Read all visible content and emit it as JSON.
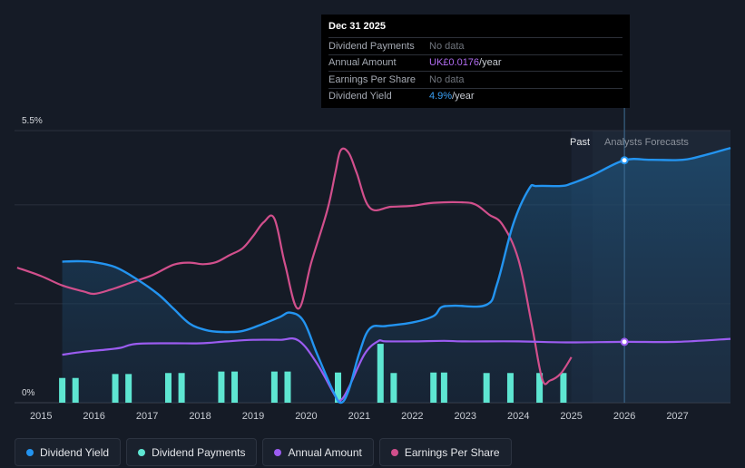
{
  "tooltip": {
    "date": "Dec 31 2025",
    "rows": [
      {
        "label": "Dividend Payments",
        "value": "No data",
        "suffix": ""
      },
      {
        "label": "Annual Amount",
        "value": "UK£0.0176",
        "suffix": "/year"
      },
      {
        "label": "Earnings Per Share",
        "value": "No data",
        "suffix": ""
      },
      {
        "label": "Dividend Yield",
        "value": "4.9%",
        "suffix": "/year"
      }
    ]
  },
  "labels": {
    "past": "Past",
    "forecast": "Analysts Forecasts"
  },
  "legend": [
    {
      "label": "Dividend Yield",
      "color": "#2394f0"
    },
    {
      "label": "Dividend Payments",
      "color": "#5ee6d2"
    },
    {
      "label": "Annual Amount",
      "color": "#9b5cf0"
    },
    {
      "label": "Earnings Per Share",
      "color": "#d14f8c"
    }
  ],
  "colors": {
    "yield": "#2394f0",
    "payments": "#5ee6d2",
    "annual": "#9b5cf0",
    "eps": "#d14f8c",
    "grid": "#2a313d",
    "forecast_bg": "#1b2433"
  },
  "chart_data": {
    "type": "line",
    "title": "",
    "xlabel": "",
    "ylabel": "",
    "ylim": [
      0,
      5.5
    ],
    "xlim": [
      2014.5,
      2028.0
    ],
    "y_tick_labels": [
      "0%",
      "5.5%"
    ],
    "x_ticks": [
      2015,
      2016,
      2017,
      2018,
      2019,
      2020,
      2021,
      2022,
      2023,
      2024,
      2025,
      2026,
      2027
    ],
    "past_end": 2025.0,
    "forecast_start": 2025.4,
    "tooltip_x": 2026.0,
    "series": [
      {
        "name": "Dividend Yield",
        "unit": "%",
        "x": [
          2015.4,
          2015.7,
          2016.0,
          2016.4,
          2016.8,
          2017.2,
          2017.5,
          2017.8,
          2018.1,
          2018.4,
          2018.8,
          2019.2,
          2019.5,
          2019.7,
          2019.95,
          2020.2,
          2020.5,
          2020.65,
          2020.8,
          2021.0,
          2021.2,
          2021.5,
          2022.0,
          2022.4,
          2022.55,
          2022.8,
          2023.4,
          2023.6,
          2023.9,
          2024.2,
          2024.35,
          2024.8,
          2025.0,
          2025.4,
          2026.0,
          2026.5,
          2027.1,
          2027.5,
          2028.0
        ],
        "values": [
          2.85,
          2.86,
          2.84,
          2.74,
          2.5,
          2.2,
          1.9,
          1.6,
          1.47,
          1.43,
          1.45,
          1.6,
          1.73,
          1.82,
          1.65,
          1.0,
          0.25,
          0.0,
          0.25,
          1.0,
          1.5,
          1.55,
          1.62,
          1.75,
          1.93,
          1.96,
          1.98,
          2.4,
          3.6,
          4.32,
          4.38,
          4.38,
          4.43,
          4.6,
          4.9,
          4.91,
          4.91,
          5.0,
          5.15
        ]
      },
      {
        "name": "Annual Amount",
        "unit": "index",
        "x": [
          2015.4,
          2015.8,
          2016.2,
          2016.5,
          2016.8,
          2017.5,
          2018.0,
          2018.5,
          2019.0,
          2019.5,
          2019.85,
          2020.2,
          2020.55,
          2020.65,
          2020.8,
          2021.1,
          2021.35,
          2021.5,
          2022.0,
          2022.6,
          2023.0,
          2024.0,
          2024.9,
          2026.0,
          2027.0,
          2028.0
        ],
        "values": [
          0.97,
          1.03,
          1.07,
          1.11,
          1.19,
          1.2,
          1.2,
          1.24,
          1.27,
          1.27,
          1.26,
          0.8,
          0.13,
          0.05,
          0.3,
          0.98,
          1.24,
          1.24,
          1.24,
          1.25,
          1.24,
          1.24,
          1.22,
          1.23,
          1.23,
          1.29
        ]
      },
      {
        "name": "Earnings Per Share",
        "unit": "index",
        "x": [
          2014.55,
          2015.0,
          2015.4,
          2015.8,
          2016.0,
          2016.3,
          2016.7,
          2017.1,
          2017.5,
          2017.8,
          2018.05,
          2018.3,
          2018.55,
          2018.8,
          2019.0,
          2019.2,
          2019.4,
          2019.6,
          2019.85,
          2020.1,
          2020.4,
          2020.55,
          2020.65,
          2020.8,
          2020.95,
          2021.2,
          2021.6,
          2022.0,
          2022.4,
          2022.95,
          2023.2,
          2023.45,
          2023.7,
          2024.0,
          2024.25,
          2024.45,
          2024.6,
          2024.8,
          2025.0
        ],
        "values": [
          2.73,
          2.56,
          2.37,
          2.25,
          2.2,
          2.28,
          2.43,
          2.58,
          2.79,
          2.83,
          2.8,
          2.84,
          2.98,
          3.12,
          3.37,
          3.65,
          3.72,
          2.8,
          1.9,
          2.85,
          3.9,
          4.65,
          5.1,
          5.05,
          4.65,
          3.94,
          3.96,
          3.98,
          4.04,
          4.05,
          4.0,
          3.8,
          3.6,
          2.9,
          1.6,
          0.48,
          0.45,
          0.59,
          0.92
        ]
      },
      {
        "name": "Dividend Payments",
        "type": "bar",
        "unit": "index",
        "x": [
          2015.4,
          2015.65,
          2016.4,
          2016.65,
          2017.4,
          2017.65,
          2018.4,
          2018.65,
          2019.4,
          2019.65,
          2020.6,
          2021.4,
          2021.65,
          2022.4,
          2022.6,
          2023.4,
          2023.85,
          2024.4,
          2024.85
        ],
        "values": [
          0.5,
          0.5,
          0.58,
          0.58,
          0.6,
          0.6,
          0.63,
          0.63,
          0.63,
          0.63,
          0.61,
          1.19,
          0.6,
          0.61,
          0.61,
          0.6,
          0.6,
          0.6,
          0.6
        ]
      }
    ]
  }
}
